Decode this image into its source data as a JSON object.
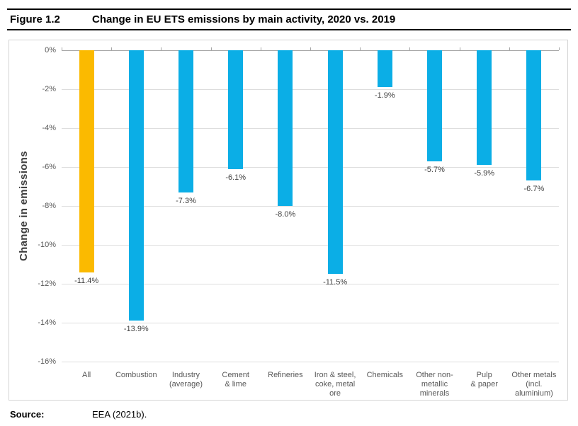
{
  "header": {
    "figure_label": "Figure 1.2",
    "title": "Change in EU ETS emissions by main activity, 2020 vs. 2019"
  },
  "footer": {
    "source_label": "Source:",
    "source_text": "EEA (2021b)."
  },
  "colors": {
    "highlight_bar": "#fbba00",
    "default_bar": "#0baee6",
    "zero_axis_line": "#a6a6a6",
    "gridline": "#dddddd",
    "tick_label_text": "#595959",
    "data_label_text": "#404040"
  },
  "chart_data": {
    "type": "bar",
    "title": "Change in EU ETS emissions by main activity, 2020 vs. 2019",
    "xlabel": "",
    "ylabel": "Change in emissions",
    "ylim": [
      -16,
      0
    ],
    "ytick_step": 2,
    "ytick_labels": [
      "0%",
      "-2%",
      "-4%",
      "-6%",
      "-8%",
      "-10%",
      "-12%",
      "-14%",
      "-16%"
    ],
    "grid": true,
    "legend": "none",
    "categories": [
      "All",
      "Combustion",
      "Industry (average)",
      "Cement & lime",
      "Refineries",
      "Iron & steel, coke, metal ore",
      "Chemicals",
      "Other non-metallic minerals",
      "Pulp & paper",
      "Other metals (incl. aluminium)"
    ],
    "category_label_lines": [
      [
        "All"
      ],
      [
        "Combustion"
      ],
      [
        "Industry",
        "(average)"
      ],
      [
        "Cement",
        "& lime"
      ],
      [
        "Refineries"
      ],
      [
        "Iron & steel,",
        "coke, metal",
        "ore"
      ],
      [
        "Chemicals"
      ],
      [
        "Other non-",
        "metallic",
        "minerals"
      ],
      [
        "Pulp",
        "& paper"
      ],
      [
        "Other metals",
        "(incl.",
        "aluminium)"
      ]
    ],
    "values": [
      -11.4,
      -13.9,
      -7.3,
      -6.1,
      -8.0,
      -11.5,
      -1.9,
      -5.7,
      -5.9,
      -6.7
    ],
    "data_labels": [
      "-11.4%",
      "-13.9%",
      "-7.3%",
      "-6.1%",
      "-8.0%",
      "-11.5%",
      "-1.9%",
      "-5.7%",
      "-5.9%",
      "-6.7%"
    ],
    "highlight_index": 0
  }
}
